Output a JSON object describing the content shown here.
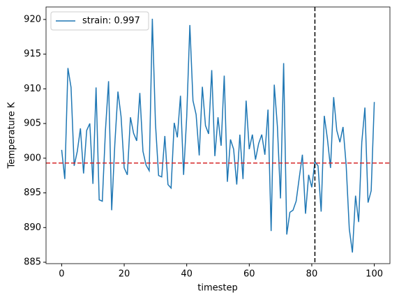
{
  "chart_data": {
    "type": "line",
    "xlabel": "timestep",
    "ylabel": "Temperature K",
    "x": [
      0,
      1,
      2,
      3,
      4,
      5,
      6,
      7,
      8,
      9,
      10,
      11,
      12,
      13,
      14,
      15,
      16,
      17,
      18,
      19,
      20,
      21,
      22,
      23,
      24,
      25,
      26,
      27,
      28,
      29,
      30,
      31,
      32,
      33,
      34,
      35,
      36,
      37,
      38,
      39,
      40,
      41,
      42,
      43,
      44,
      45,
      46,
      47,
      48,
      49,
      50,
      51,
      52,
      53,
      54,
      55,
      56,
      57,
      58,
      59,
      60,
      61,
      62,
      63,
      64,
      65,
      66,
      67,
      68,
      69,
      70,
      71,
      72,
      73,
      74,
      75,
      76,
      77,
      78,
      79,
      80,
      81,
      82,
      83,
      84,
      85,
      86,
      87,
      88,
      89,
      90,
      91,
      92,
      93,
      94,
      95,
      96,
      97,
      98,
      99,
      100
    ],
    "series": [
      {
        "name": "strain: 0.997",
        "color": "#1f77b4",
        "values": [
          901.2,
          897,
          913,
          910.2,
          898.9,
          901,
          904.3,
          897.8,
          904,
          905,
          896.3,
          910.2,
          894,
          893.8,
          904,
          911.1,
          892.5,
          902,
          909.6,
          906,
          898.6,
          897.6,
          905.9,
          903.6,
          902.5,
          909.4,
          901,
          899,
          898.2,
          920.1,
          905,
          897.5,
          897.3,
          903.2,
          896.2,
          895.7,
          905.1,
          903,
          909,
          897.6,
          906,
          919.2,
          908.3,
          906.3,
          900.4,
          910.3,
          904.7,
          903.5,
          912.7,
          900.3,
          905.9,
          901.8,
          911.9,
          896.6,
          902.7,
          901.3,
          896.2,
          903.4,
          897,
          908.3,
          901.3,
          903.4,
          899.8,
          902.1,
          903.4,
          900.5,
          907,
          889.5,
          910.6,
          904.6,
          894.2,
          913.7,
          889,
          892.2,
          892.5,
          893.8,
          897.2,
          900.5,
          892,
          897.6,
          895.8,
          899.5,
          898.9,
          892.3,
          906.1,
          902.8,
          898.6,
          908.8,
          904,
          902.3,
          904.5,
          899,
          889.8,
          886.4,
          894.6,
          890.8,
          902.3,
          907.3,
          893.6,
          895.3,
          908.1
        ]
      }
    ],
    "hlines": [
      {
        "y": 899.3,
        "color": "#d62728"
      }
    ],
    "vlines": [
      {
        "x": 81,
        "color": "#000000"
      }
    ],
    "xlim": [
      -5,
      105
    ],
    "xticks": [
      0,
      20,
      40,
      60,
      80,
      100
    ],
    "ylim": [
      884.8,
      921.8
    ],
    "yticks": [
      885,
      890,
      895,
      900,
      905,
      910,
      915,
      920
    ],
    "legend": "upper left"
  }
}
